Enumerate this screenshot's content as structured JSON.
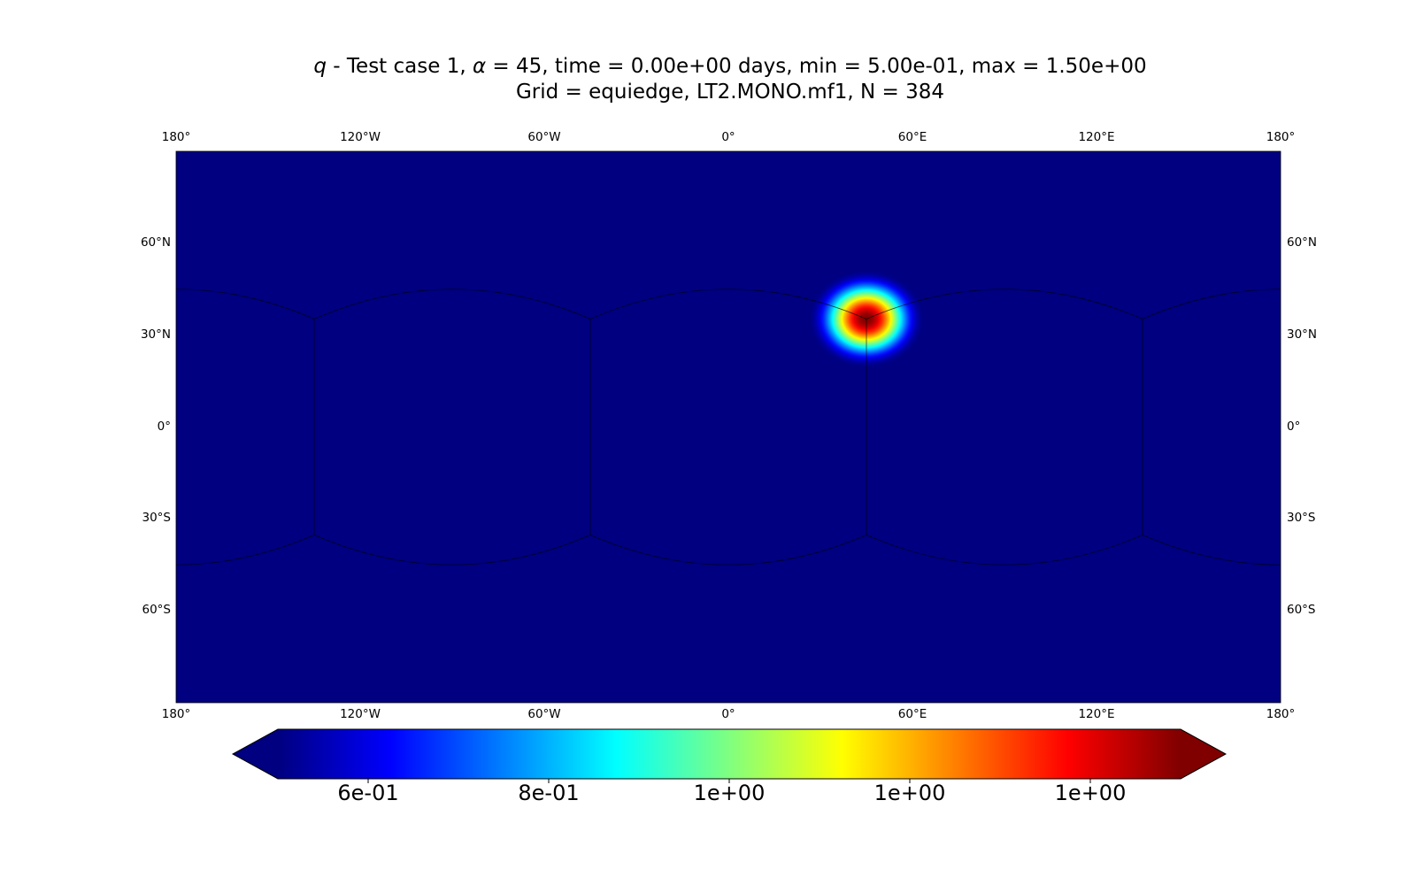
{
  "title": {
    "q_symbol": "q",
    "line1_part1": " - Test case 1, ",
    "alpha_symbol": "α",
    "line1_part2": " = 45, time = 0.00e+00 days, min = 5.00e-01, max = 1.50e+00",
    "line2": "Grid = equiedge, LT2.MONO.mf1, N = 384"
  },
  "map": {
    "projection": "plate carree",
    "lon_ticks": [
      {
        "value": -180,
        "label": "180°"
      },
      {
        "value": -120,
        "label": "120°W"
      },
      {
        "value": -60,
        "label": "60°W"
      },
      {
        "value": 0,
        "label": "0°"
      },
      {
        "value": 60,
        "label": "60°E"
      },
      {
        "value": 120,
        "label": "120°E"
      },
      {
        "value": 180,
        "label": "180°"
      }
    ],
    "lat_ticks": [
      {
        "value": 60,
        "label": "60°N"
      },
      {
        "value": 30,
        "label": "30°N"
      },
      {
        "value": 0,
        "label": "0°"
      },
      {
        "value": -30,
        "label": "30°S"
      },
      {
        "value": -60,
        "label": "60°S"
      }
    ],
    "lon_range": [
      -180,
      180
    ],
    "lat_range": [
      -90,
      90
    ],
    "background_color": "#000080",
    "grid_edge_color": "#000000"
  },
  "chart_data": {
    "type": "heatmap",
    "field": "q",
    "min": 0.5,
    "max": 1.5,
    "bell": {
      "center_lon": 45,
      "center_lat": 35.3,
      "peak": 1.5,
      "base": 0.5
    },
    "cube_edges": {
      "meridians": [
        -135,
        -45,
        45,
        135
      ],
      "corner_lat": 35.26
    },
    "colormap": "jet",
    "colorbar": {
      "range": [
        0.5,
        1.5
      ],
      "extend": "both",
      "ticks": [
        {
          "value": 0.6,
          "label": "6e-01"
        },
        {
          "value": 0.8,
          "label": "8e-01"
        },
        {
          "value": 1.0,
          "label": "1e+00"
        },
        {
          "value": 1.2,
          "label": "1e+00"
        },
        {
          "value": 1.4,
          "label": "1e+00"
        }
      ]
    }
  }
}
